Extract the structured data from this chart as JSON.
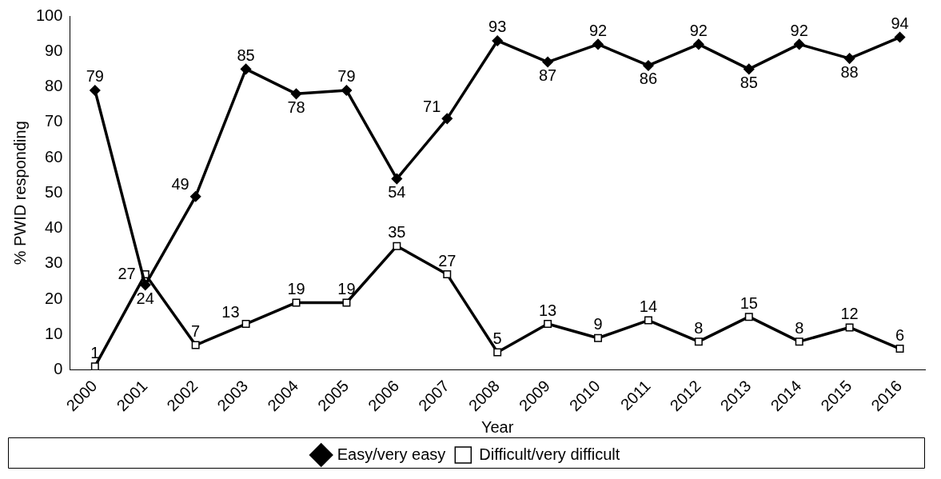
{
  "chart_data": {
    "type": "line",
    "xlabel": "Year",
    "ylabel": "% PWID responding",
    "categories": [
      "2000",
      "2001",
      "2002",
      "2003",
      "2004",
      "2005",
      "2006",
      "2007",
      "2008",
      "2009",
      "2010",
      "2011",
      "2012",
      "2013",
      "2014",
      "2015",
      "2016"
    ],
    "series": [
      {
        "name": "Easy/very easy",
        "color": "#000000",
        "marker": "diamond",
        "values": [
          79,
          24,
          49,
          85,
          78,
          79,
          54,
          71,
          93,
          87,
          92,
          86,
          92,
          85,
          92,
          88,
          94
        ]
      },
      {
        "name": "Difficult/very difficult",
        "color": "#000000",
        "marker": "square",
        "values": [
          1,
          27,
          7,
          13,
          19,
          19,
          35,
          27,
          5,
          13,
          9,
          14,
          8,
          15,
          8,
          12,
          6
        ]
      }
    ],
    "ylim": [
      0,
      100
    ],
    "yticks": [
      0,
      10,
      20,
      30,
      40,
      50,
      60,
      70,
      80,
      90,
      100
    ],
    "grid": false,
    "legend": "bottom",
    "data_labels": true,
    "line_style": "solid"
  }
}
